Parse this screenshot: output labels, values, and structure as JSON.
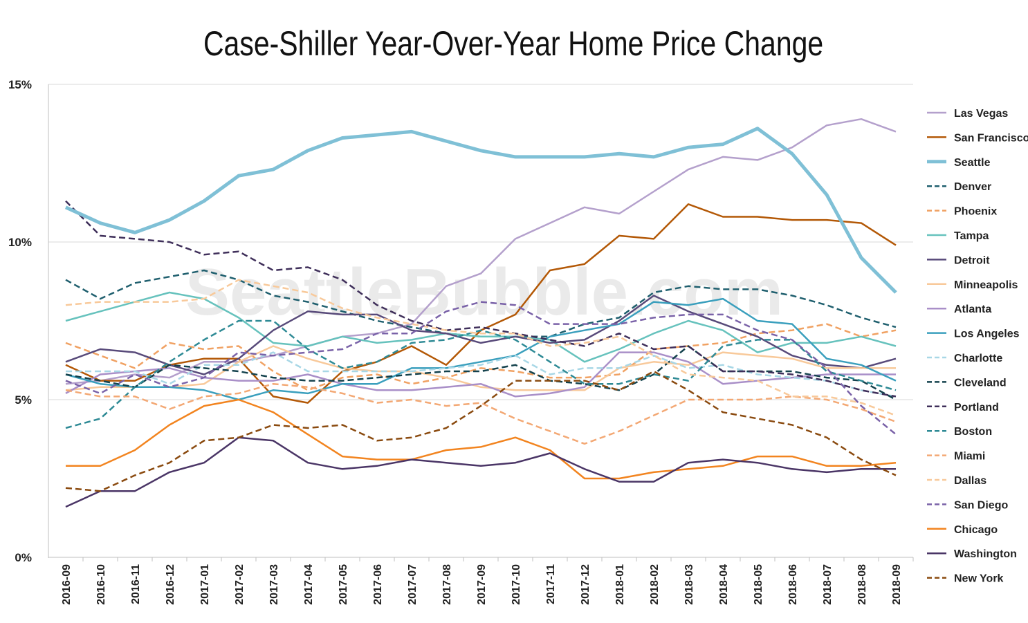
{
  "watermark": "SeattleBubble.com",
  "chart_data": {
    "type": "line",
    "title": "Case-Shiller Year-Over-Year Home Price Change",
    "xlabel": "",
    "ylabel": "",
    "ylim": [
      0,
      15
    ],
    "y_ticks": [
      "0%",
      "5%",
      "10%",
      "15%"
    ],
    "y_tick_values": [
      0,
      5,
      10,
      15
    ],
    "grid": "horizontal",
    "legend_position": "right",
    "categories": [
      "2016-09",
      "2016-10",
      "2016-11",
      "2016-12",
      "2017-01",
      "2017-02",
      "2017-03",
      "2017-04",
      "2017-05",
      "2017-06",
      "2017-07",
      "2017-08",
      "2017-09",
      "2017-10",
      "2017-11",
      "2017-12",
      "2018-01",
      "2018-02",
      "2018-03",
      "2018-04",
      "2018-05",
      "2018-06",
      "2018-07",
      "2018-08",
      "2018-09"
    ],
    "series": [
      {
        "name": "Las Vegas",
        "color": "#b4a0cc",
        "dash": "solid",
        "width": "normal",
        "values": [
          5.5,
          5.6,
          5.8,
          5.7,
          6.2,
          6.2,
          6.4,
          6.7,
          7.0,
          7.1,
          7.4,
          8.6,
          9.0,
          10.1,
          10.6,
          11.1,
          10.9,
          11.6,
          12.3,
          12.7,
          12.6,
          13.0,
          13.7,
          13.9,
          13.5
        ]
      },
      {
        "name": "San Francisco",
        "color": "#b35806",
        "dash": "solid",
        "width": "normal",
        "values": [
          6.1,
          5.6,
          5.6,
          6.1,
          6.3,
          6.3,
          5.1,
          4.9,
          5.9,
          6.2,
          6.7,
          6.1,
          7.2,
          7.7,
          9.1,
          9.3,
          10.2,
          10.1,
          11.2,
          10.8,
          10.8,
          10.7,
          10.7,
          10.6,
          9.9
        ]
      },
      {
        "name": "Seattle",
        "color": "#7fc0d6",
        "dash": "solid",
        "width": "thick",
        "values": [
          11.1,
          10.6,
          10.3,
          10.7,
          11.3,
          12.1,
          12.3,
          12.9,
          13.3,
          13.4,
          13.5,
          13.2,
          12.9,
          12.7,
          12.7,
          12.7,
          12.8,
          12.7,
          13.0,
          13.1,
          13.6,
          12.8,
          11.5,
          9.5,
          8.4
        ]
      },
      {
        "name": "Denver",
        "color": "#1f5f6e",
        "dash": "dash",
        "width": "normal",
        "values": [
          8.8,
          8.2,
          8.7,
          8.9,
          9.1,
          8.8,
          8.3,
          8.1,
          7.8,
          7.5,
          7.3,
          7.1,
          7.0,
          7.0,
          7.0,
          7.4,
          7.6,
          8.4,
          8.6,
          8.5,
          8.5,
          8.3,
          8.0,
          7.6,
          7.3
        ]
      },
      {
        "name": "Phoenix",
        "color": "#f0a162",
        "dash": "dash",
        "width": "normal",
        "values": [
          6.8,
          6.4,
          6.0,
          6.8,
          6.6,
          6.7,
          5.9,
          5.3,
          5.7,
          5.8,
          5.5,
          5.7,
          6.0,
          5.9,
          5.7,
          5.7,
          5.8,
          6.6,
          6.7,
          6.8,
          7.1,
          7.2,
          7.4,
          7.0,
          7.2
        ]
      },
      {
        "name": "Tampa",
        "color": "#66c2bd",
        "dash": "solid",
        "width": "normal",
        "values": [
          7.5,
          7.8,
          8.1,
          8.4,
          8.2,
          7.6,
          6.8,
          6.7,
          7.0,
          6.8,
          6.9,
          7.1,
          7.0,
          7.0,
          6.9,
          6.2,
          6.6,
          7.1,
          7.5,
          7.2,
          6.5,
          6.8,
          6.8,
          7.0,
          6.7
        ]
      },
      {
        "name": "Detroit",
        "color": "#584a7a",
        "dash": "solid",
        "width": "normal",
        "values": [
          6.2,
          6.6,
          6.5,
          6.1,
          5.8,
          6.3,
          7.2,
          7.8,
          7.7,
          7.7,
          7.2,
          7.1,
          6.8,
          7.0,
          6.8,
          6.9,
          7.5,
          8.3,
          7.8,
          7.4,
          7.0,
          6.4,
          6.1,
          6.0,
          6.3
        ]
      },
      {
        "name": "Minneapolis",
        "color": "#f8c99a",
        "dash": "solid",
        "width": "normal",
        "values": [
          5.3,
          5.4,
          5.4,
          5.4,
          5.5,
          6.2,
          6.7,
          6.3,
          6.0,
          5.9,
          5.9,
          5.7,
          5.4,
          5.3,
          5.3,
          5.3,
          6.0,
          6.2,
          6.1,
          6.5,
          6.4,
          6.3,
          6.0,
          6.0,
          6.0
        ]
      },
      {
        "name": "Atlanta",
        "color": "#a98fc8",
        "dash": "solid",
        "width": "normal",
        "values": [
          5.2,
          5.8,
          5.9,
          6.0,
          5.7,
          5.6,
          5.6,
          5.8,
          5.5,
          5.3,
          5.3,
          5.4,
          5.5,
          5.1,
          5.2,
          5.4,
          6.5,
          6.5,
          6.2,
          5.5,
          5.6,
          5.7,
          5.8,
          5.8,
          5.8
        ]
      },
      {
        "name": "Los Angeles",
        "color": "#3a9fbd",
        "dash": "solid",
        "width": "normal",
        "values": [
          5.8,
          5.5,
          5.4,
          5.4,
          5.3,
          5.0,
          5.3,
          5.2,
          5.5,
          5.5,
          6.0,
          6.0,
          6.2,
          6.4,
          7.0,
          7.2,
          7.4,
          8.1,
          8.0,
          8.2,
          7.5,
          7.4,
          6.3,
          6.1,
          5.6
        ]
      },
      {
        "name": "Charlotte",
        "color": "#a8d7e6",
        "dash": "dash",
        "width": "normal",
        "values": [
          5.9,
          5.9,
          5.9,
          5.5,
          6.1,
          6.1,
          6.5,
          5.9,
          5.9,
          5.9,
          5.9,
          6.0,
          6.1,
          6.4,
          5.8,
          6.0,
          6.0,
          6.4,
          6.0,
          6.1,
          5.8,
          5.7,
          5.6,
          5.3,
          5.1
        ]
      },
      {
        "name": "Cleveland",
        "color": "#14424d",
        "dash": "dash",
        "width": "normal",
        "values": [
          5.8,
          5.6,
          5.4,
          6.1,
          6.0,
          5.9,
          5.7,
          5.6,
          5.6,
          5.7,
          5.8,
          5.9,
          5.9,
          6.1,
          5.6,
          5.5,
          5.3,
          5.8,
          6.7,
          5.9,
          5.9,
          5.9,
          5.7,
          5.6,
          5.0
        ]
      },
      {
        "name": "Portland",
        "color": "#3f2f5a",
        "dash": "dash",
        "width": "normal",
        "values": [
          11.3,
          10.2,
          10.1,
          10.0,
          9.6,
          9.7,
          9.1,
          9.2,
          8.8,
          8.0,
          7.5,
          7.2,
          7.3,
          7.1,
          6.9,
          6.7,
          7.1,
          6.6,
          6.7,
          5.9,
          5.9,
          5.8,
          5.6,
          5.3,
          5.1
        ]
      },
      {
        "name": "Boston",
        "color": "#2e8a95",
        "dash": "dash",
        "width": "normal",
        "values": [
          4.1,
          4.4,
          5.4,
          6.2,
          6.9,
          7.5,
          7.5,
          6.6,
          6.0,
          6.2,
          6.8,
          6.9,
          7.2,
          6.9,
          6.2,
          5.5,
          5.5,
          5.8,
          5.6,
          6.7,
          6.9,
          6.9,
          5.9,
          5.6,
          5.3
        ]
      },
      {
        "name": "Miami",
        "color": "#f3a874",
        "dash": "dash",
        "width": "normal",
        "values": [
          5.3,
          5.1,
          5.1,
          4.7,
          5.1,
          5.2,
          5.5,
          5.4,
          5.2,
          4.9,
          5.0,
          4.8,
          4.9,
          4.4,
          4.0,
          3.6,
          4.0,
          4.5,
          5.0,
          5.0,
          5.0,
          5.1,
          5.0,
          4.7,
          4.3
        ]
      },
      {
        "name": "Dallas",
        "color": "#f8c99a",
        "dash": "dash",
        "width": "normal",
        "values": [
          8.0,
          8.1,
          8.1,
          8.1,
          8.2,
          8.8,
          8.6,
          8.4,
          7.9,
          7.6,
          7.4,
          7.2,
          7.1,
          7.1,
          6.7,
          6.8,
          7.0,
          6.4,
          5.8,
          5.7,
          5.6,
          5.1,
          5.1,
          4.9,
          4.5
        ]
      },
      {
        "name": "San Diego",
        "color": "#7a62a8",
        "dash": "dash",
        "width": "normal",
        "values": [
          5.6,
          5.2,
          5.8,
          5.4,
          5.7,
          6.5,
          6.4,
          6.5,
          6.6,
          7.1,
          7.1,
          7.8,
          8.1,
          8.0,
          7.4,
          7.4,
          7.4,
          7.6,
          7.7,
          7.7,
          7.2,
          6.9,
          6.0,
          4.8,
          3.9
        ]
      },
      {
        "name": "Chicago",
        "color": "#f2841f",
        "dash": "solid",
        "width": "normal",
        "values": [
          2.9,
          2.9,
          3.4,
          4.2,
          4.8,
          5.0,
          4.6,
          3.9,
          3.2,
          3.1,
          3.1,
          3.4,
          3.5,
          3.8,
          3.4,
          2.5,
          2.5,
          2.7,
          2.8,
          2.9,
          3.2,
          3.2,
          2.9,
          2.9,
          3.0
        ]
      },
      {
        "name": "Washington",
        "color": "#4a3566",
        "dash": "solid",
        "width": "normal",
        "values": [
          1.6,
          2.1,
          2.1,
          2.7,
          3.0,
          3.8,
          3.7,
          3.0,
          2.8,
          2.9,
          3.1,
          3.0,
          2.9,
          3.0,
          3.3,
          2.8,
          2.4,
          2.4,
          3.0,
          3.1,
          3.0,
          2.8,
          2.7,
          2.8,
          2.8
        ]
      },
      {
        "name": "New York",
        "color": "#8a4a0f",
        "dash": "dash",
        "width": "normal",
        "values": [
          2.2,
          2.1,
          2.6,
          3.0,
          3.7,
          3.8,
          4.2,
          4.1,
          4.2,
          3.7,
          3.8,
          4.1,
          4.8,
          5.6,
          5.6,
          5.6,
          5.3,
          5.9,
          5.3,
          4.6,
          4.4,
          4.2,
          3.8,
          3.1,
          2.6
        ]
      }
    ]
  }
}
